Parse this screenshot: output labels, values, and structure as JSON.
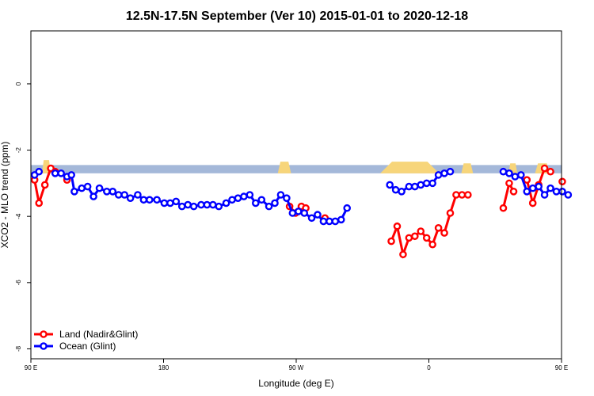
{
  "chart_data": {
    "type": "line",
    "title": "12.5N-17.5N September (Ver 10)   2015-01-01 to 2020-12-18",
    "xlabel": "Longitude (deg E)",
    "ylabel": "XCO2 - MLO trend (ppm)",
    "xlim": [
      90,
      450
    ],
    "ylim": [
      -8.3,
      1.6
    ],
    "x_ticks": [
      {
        "value": 90,
        "label": "90 E"
      },
      {
        "value": 180,
        "label": "180"
      },
      {
        "value": 270,
        "label": "90 W"
      },
      {
        "value": 360,
        "label": "0"
      },
      {
        "value": 450,
        "label": "90 E"
      },
      {
        "value": 540,
        "label": "180"
      }
    ],
    "y_ticks": [
      {
        "value": 0,
        "label": "0"
      },
      {
        "value": -2,
        "label": "-2"
      },
      {
        "value": -4,
        "label": "-4"
      },
      {
        "value": -6,
        "label": "-6"
      },
      {
        "value": -8,
        "label": "-8"
      }
    ],
    "legend_position": "bottom-left",
    "land_mask": {
      "band_y": [
        -2.45,
        -2.7
      ],
      "ocean_color": "#a4b8d9",
      "land_color": "#f7d57a",
      "land_segments": [
        {
          "x": [
            97.5,
            103.5
          ],
          "peak": -2.3
        },
        {
          "x": [
            257.5,
            266.5
          ],
          "peak": -2.35
        },
        {
          "x": [
            327,
            367
          ],
          "peak": -2.35
        },
        {
          "x": [
            382,
            390
          ],
          "peak": -2.4
        },
        {
          "x": [
            414,
            420
          ],
          "peak": -2.4
        },
        {
          "x": [
            432,
            442
          ],
          "peak": -2.4
        }
      ]
    },
    "series": [
      {
        "name": "Land (Nadir&Glint)",
        "color": "#ff0000",
        "segments": [
          [
            [
              92.5,
              -2.9
            ],
            [
              95.5,
              -3.6
            ],
            [
              99.5,
              -3.05
            ],
            [
              103.5,
              -2.55
            ],
            [
              106.5,
              -2.65
            ]
          ],
          [
            [
              114.5,
              -2.9
            ]
          ],
          [
            [
              265.5,
              -3.7
            ],
            [
              269.5,
              -3.9
            ],
            [
              273.5,
              -3.7
            ],
            [
              276.5,
              -3.75
            ]
          ],
          [
            [
              289.5,
              -4.05
            ]
          ],
          [
            [
              334.5,
              -4.75
            ],
            [
              338.5,
              -4.3
            ],
            [
              342.5,
              -5.15
            ],
            [
              346.5,
              -4.65
            ],
            [
              350.5,
              -4.6
            ],
            [
              354.5,
              -4.45
            ],
            [
              358.5,
              -4.65
            ],
            [
              362.5,
              -4.85
            ],
            [
              366.5,
              -4.35
            ],
            [
              370.5,
              -4.5
            ],
            [
              374.5,
              -3.9
            ],
            [
              378.5,
              -3.35
            ],
            [
              382.5,
              -3.35
            ],
            [
              386.5,
              -3.35
            ]
          ],
          [
            [
              410.5,
              -3.75
            ],
            [
              414.5,
              -3.0
            ],
            [
              417.5,
              -3.25
            ]
          ],
          [
            [
              426.5,
              -2.9
            ],
            [
              430.5,
              -3.6
            ],
            [
              434.5,
              -3.05
            ],
            [
              438.5,
              -2.55
            ],
            [
              442.5,
              -2.65
            ]
          ],
          [
            [
              450.5,
              -2.95
            ]
          ]
        ]
      },
      {
        "name": "Ocean (Glint)",
        "color": "#0000ff",
        "segments": [
          [
            [
              92.5,
              -2.75
            ],
            [
              95.5,
              -2.65
            ]
          ],
          [
            [
              106.5,
              -2.7
            ],
            [
              110.5,
              -2.7
            ],
            [
              114.5,
              -2.8
            ],
            [
              117.5,
              -2.75
            ],
            [
              119.5,
              -3.25
            ],
            [
              124.5,
              -3.15
            ],
            [
              128.5,
              -3.1
            ],
            [
              132.5,
              -3.4
            ],
            [
              136.5,
              -3.15
            ],
            [
              141.5,
              -3.25
            ],
            [
              145.5,
              -3.25
            ],
            [
              149.5,
              -3.35
            ],
            [
              153.5,
              -3.35
            ],
            [
              157.5,
              -3.45
            ],
            [
              162.5,
              -3.35
            ],
            [
              166.5,
              -3.5
            ],
            [
              170.5,
              -3.5
            ],
            [
              175.5,
              -3.5
            ],
            [
              180.5,
              -3.6
            ],
            [
              184.5,
              -3.6
            ],
            [
              188.5,
              -3.55
            ],
            [
              192.5,
              -3.7
            ],
            [
              196.5,
              -3.65
            ],
            [
              200.5,
              -3.7
            ],
            [
              205.5,
              -3.65
            ],
            [
              209.5,
              -3.65
            ],
            [
              213.5,
              -3.65
            ],
            [
              217.5,
              -3.7
            ],
            [
              222.5,
              -3.6
            ],
            [
              226.5,
              -3.5
            ],
            [
              230.5,
              -3.45
            ],
            [
              234.5,
              -3.4
            ],
            [
              238.5,
              -3.35
            ],
            [
              242.5,
              -3.6
            ],
            [
              246.5,
              -3.5
            ],
            [
              251.5,
              -3.7
            ],
            [
              255.5,
              -3.6
            ],
            [
              259.5,
              -3.35
            ],
            [
              263.5,
              -3.45
            ],
            [
              267.5,
              -3.9
            ],
            [
              271.5,
              -3.85
            ],
            [
              275.5,
              -3.9
            ],
            [
              280.5,
              -4.05
            ],
            [
              284.5,
              -3.95
            ],
            [
              288.5,
              -4.15
            ],
            [
              292.5,
              -4.15
            ],
            [
              296.5,
              -4.15
            ],
            [
              300.5,
              -4.1
            ],
            [
              304.5,
              -3.75
            ]
          ],
          [
            [
              333.5,
              -3.05
            ],
            [
              337.5,
              -3.2
            ],
            [
              341.5,
              -3.25
            ],
            [
              346.5,
              -3.1
            ],
            [
              350.5,
              -3.1
            ],
            [
              354.5,
              -3.05
            ],
            [
              358.5,
              -3.0
            ],
            [
              362.5,
              -3.0
            ],
            [
              366.5,
              -2.75
            ],
            [
              370.5,
              -2.7
            ],
            [
              374.5,
              -2.65
            ]
          ],
          [
            [
              410.5,
              -2.65
            ],
            [
              414.5,
              -2.7
            ],
            [
              418.5,
              -2.8
            ],
            [
              422.5,
              -2.75
            ],
            [
              426.5,
              -3.25
            ],
            [
              430.5,
              -3.15
            ],
            [
              434.5,
              -3.1
            ],
            [
              438.5,
              -3.35
            ],
            [
              442.5,
              -3.15
            ],
            [
              446.5,
              -3.25
            ],
            [
              450.5,
              -3.25
            ],
            [
              454.5,
              -3.35
            ]
          ]
        ]
      }
    ]
  }
}
